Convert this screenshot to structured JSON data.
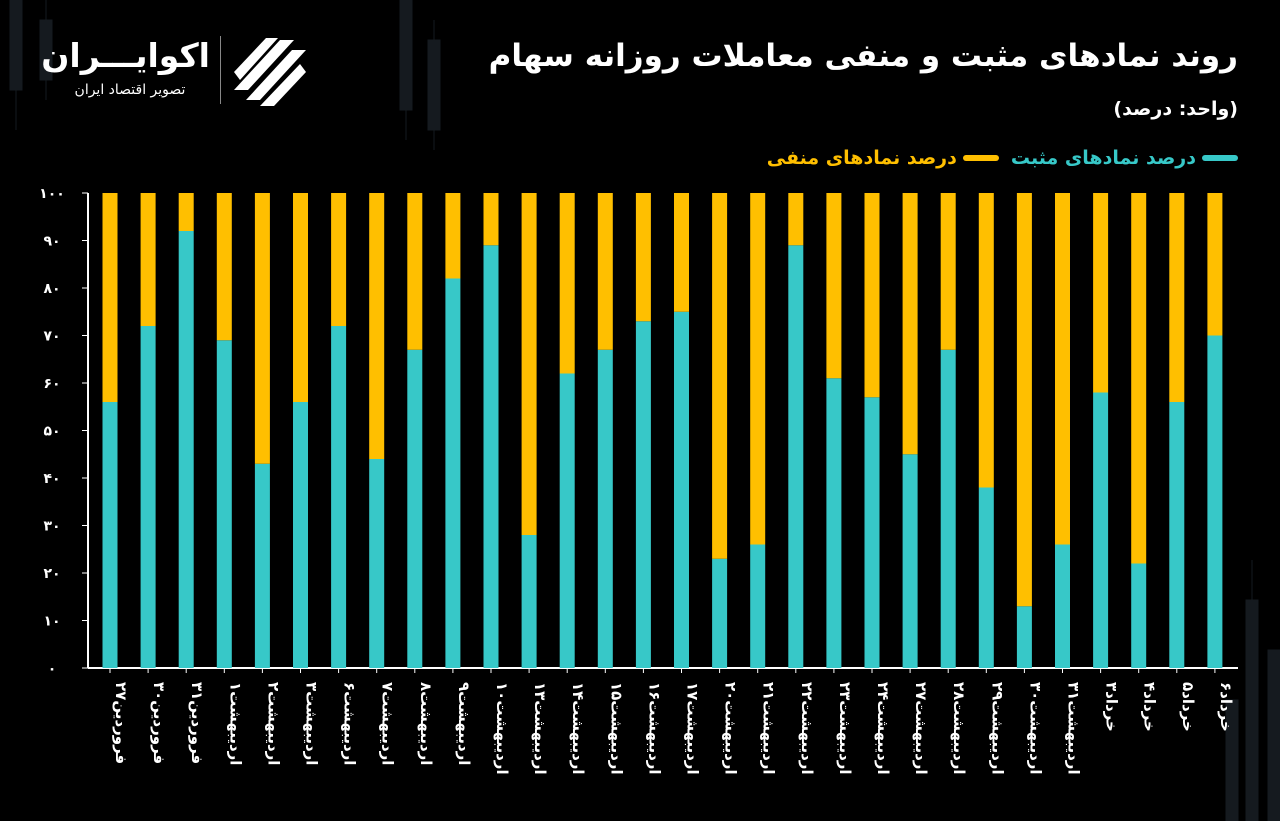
{
  "header": {
    "title": "روند نمادهای مثبت و منفی معاملات روزانه سهام",
    "unit": "(واحد: درصد)"
  },
  "logo": {
    "name": "اکوایـــران",
    "subtitle": "تصویر اقتصاد ایران",
    "icon": "ekoiran-logo-icon"
  },
  "colors": {
    "positive": "#37c8c8",
    "negative": "#ffbf00",
    "background": "#000000"
  },
  "chart_data": {
    "type": "bar",
    "stacked": true,
    "title": "روند نمادهای مثبت و منفی معاملات روزانه سهام",
    "ylabel": "",
    "xlabel": "",
    "ylim": [
      0,
      100
    ],
    "yticks": [
      "۰",
      "۱۰",
      "۲۰",
      "۳۰",
      "۴۰",
      "۵۰",
      "۶۰",
      "۷۰",
      "۸۰",
      "۹۰",
      "۱۰۰"
    ],
    "grid": false,
    "legend_position": "top-right",
    "categories": [
      "فروردین۲۷",
      "فروردین۳۰",
      "فروردین۳۱",
      "اردیبهشت۱",
      "اردیبهشت۲",
      "اردیبهشت۳",
      "اردیبهشت۶",
      "اردیبهشت۷",
      "اردیبهشت۸",
      "اردیبهشت۹",
      "اردیبهشت۱۰",
      "اردیبهشت۱۳",
      "اردیبهشت۱۴",
      "اردیبهشت۱۵",
      "اردیبهشت۱۶",
      "اردیبهشت۱۷",
      "اردیبهشت۲۰",
      "اردیبهشت۲۱",
      "اردیبهشت۲۲",
      "اردیبهشت۲۳",
      "اردیبهشت۲۴",
      "اردیبهشت۲۷",
      "اردیبهشت۲۸",
      "اردیبهشت۲۹",
      "اردیبهشت۳۰",
      "اردیبهشت۳۱",
      "خرداد۳",
      "خرداد۴",
      "خرداد۵",
      "خرداد۶"
    ],
    "series": [
      {
        "name": "درصد نمادهای مثبت",
        "values": [
          56,
          72,
          92,
          69,
          43,
          56,
          72,
          44,
          67,
          82,
          89,
          28,
          62,
          67,
          73,
          75,
          23,
          26,
          89,
          61,
          57,
          45,
          67,
          38,
          13,
          26,
          58,
          22,
          56,
          70
        ]
      },
      {
        "name": "درصد نمادهای منفی",
        "values": [
          44,
          28,
          8,
          31,
          57,
          44,
          28,
          56,
          33,
          18,
          11,
          72,
          38,
          33,
          27,
          25,
          77,
          74,
          11,
          39,
          43,
          55,
          33,
          62,
          87,
          74,
          42,
          78,
          44,
          30
        ]
      }
    ]
  }
}
